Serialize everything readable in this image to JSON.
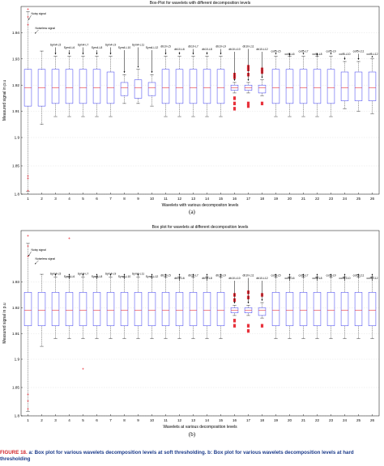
{
  "figure": {
    "subcaption_a": "(a)",
    "subcaption_b": "(b)",
    "caption_label": "FIGURE 18.",
    "caption_text": "a: Box plot for various wavelets decomposition levels at soft thresholding. b: Box plot for various wavelets decomposition levels at hard thresholding"
  },
  "colors": {
    "box": "#3a3af0",
    "median": "#e8323c",
    "outlier": "#e8323c",
    "whisker": "#000000",
    "grid": "#d9d9d9"
  },
  "chart_data": [
    {
      "type": "box",
      "title": "Box-Plot for wavelets with different decomposition levels",
      "xlabel": "Wavelets with various decompositon levels",
      "ylabel": "Measured signal in p.u",
      "ylim": [
        1.8,
        1.95
      ],
      "yticks": [
        "1.8",
        "1.85",
        "1.9",
        "1.91",
        "1.92",
        "1.93",
        "1.94"
      ],
      "xticks": [
        "1",
        "2",
        "3",
        "4",
        "5",
        "6",
        "7",
        "8",
        "9",
        "10",
        "11",
        "12",
        "13",
        "14",
        "15",
        "16",
        "17",
        "18",
        "19",
        "20",
        "21",
        "22",
        "23",
        "24",
        "25",
        "26"
      ],
      "annotations": [
        "Noisy signal",
        "Noiseless signal",
        "Sym4-L5",
        "Sym4-L6",
        "Sym4-L7",
        "Sym4-L8",
        "Sym4-L9",
        "Sym4-L10",
        "Sym4-L11",
        "Sym4-L12",
        "db10-L5",
        "db10-L6",
        "db10-L7",
        "db10-L8",
        "db10-L9",
        "db10-L10",
        "db10-L11",
        "db10-L12",
        "coif5-L5",
        "coif5-L6",
        "coif5-L7",
        "coif5-L8",
        "coif5-L9",
        "coif5-L10",
        "coif5-L11",
        "coif5-L12"
      ],
      "boxes": [
        {
          "x": 1,
          "min": 1.805,
          "q1": 1.912,
          "median": 1.919,
          "q3": 1.926,
          "max": 1.948
        },
        {
          "x": 2,
          "min": 1.905,
          "q1": 1.912,
          "median": 1.919,
          "q3": 1.926,
          "max": 1.933
        },
        {
          "x": 3,
          "min": 1.908,
          "q1": 1.913,
          "median": 1.919,
          "q3": 1.926,
          "max": 1.931
        },
        {
          "x": 4,
          "min": 1.908,
          "q1": 1.913,
          "median": 1.919,
          "q3": 1.926,
          "max": 1.931
        },
        {
          "x": 5,
          "min": 1.908,
          "q1": 1.913,
          "median": 1.919,
          "q3": 1.926,
          "max": 1.931
        },
        {
          "x": 6,
          "min": 1.908,
          "q1": 1.913,
          "median": 1.919,
          "q3": 1.926,
          "max": 1.931
        },
        {
          "x": 7,
          "min": 1.908,
          "q1": 1.913,
          "median": 1.919,
          "q3": 1.925,
          "max": 1.931
        },
        {
          "x": 8,
          "min": 1.913,
          "q1": 1.916,
          "median": 1.919,
          "q3": 1.921,
          "max": 1.924
        },
        {
          "x": 9,
          "min": 1.913,
          "q1": 1.915,
          "median": 1.919,
          "q3": 1.922,
          "max": 1.926
        },
        {
          "x": 10,
          "min": 1.912,
          "q1": 1.916,
          "median": 1.919,
          "q3": 1.921,
          "max": 1.924
        },
        {
          "x": 11,
          "min": 1.908,
          "q1": 1.913,
          "median": 1.919,
          "q3": 1.926,
          "max": 1.931
        },
        {
          "x": 12,
          "min": 1.908,
          "q1": 1.913,
          "median": 1.919,
          "q3": 1.926,
          "max": 1.931
        },
        {
          "x": 13,
          "min": 1.908,
          "q1": 1.913,
          "median": 1.919,
          "q3": 1.926,
          "max": 1.931
        },
        {
          "x": 14,
          "min": 1.908,
          "q1": 1.913,
          "median": 1.919,
          "q3": 1.926,
          "max": 1.931
        },
        {
          "x": 15,
          "min": 1.908,
          "q1": 1.913,
          "median": 1.919,
          "q3": 1.926,
          "max": 1.931
        },
        {
          "x": 16,
          "min": 1.917,
          "q1": 1.918,
          "median": 1.919,
          "q3": 1.92,
          "max": 1.921
        },
        {
          "x": 17,
          "min": 1.917,
          "q1": 1.918,
          "median": 1.919,
          "q3": 1.92,
          "max": 1.921
        },
        {
          "x": 18,
          "min": 1.916,
          "q1": 1.917,
          "median": 1.919,
          "q3": 1.92,
          "max": 1.922
        },
        {
          "x": 19,
          "min": 1.908,
          "q1": 1.913,
          "median": 1.919,
          "q3": 1.926,
          "max": 1.931
        },
        {
          "x": 20,
          "min": 1.908,
          "q1": 1.913,
          "median": 1.919,
          "q3": 1.926,
          "max": 1.931
        },
        {
          "x": 21,
          "min": 1.908,
          "q1": 1.913,
          "median": 1.919,
          "q3": 1.926,
          "max": 1.931
        },
        {
          "x": 22,
          "min": 1.908,
          "q1": 1.913,
          "median": 1.919,
          "q3": 1.926,
          "max": 1.931
        },
        {
          "x": 23,
          "min": 1.908,
          "q1": 1.913,
          "median": 1.919,
          "q3": 1.926,
          "max": 1.931
        },
        {
          "x": 24,
          "min": 1.911,
          "q1": 1.914,
          "median": 1.919,
          "q3": 1.925,
          "max": 1.929
        },
        {
          "x": 25,
          "min": 1.91,
          "q1": 1.914,
          "median": 1.919,
          "q3": 1.925,
          "max": 1.929
        },
        {
          "x": 26,
          "min": 1.909,
          "q1": 1.914,
          "median": 1.919,
          "q3": 1.925,
          "max": 1.93
        }
      ],
      "outliers": [
        {
          "x": 1,
          "y": 1.949
        },
        {
          "x": 1,
          "y": 1.946
        },
        {
          "x": 1,
          "y": 1.943
        },
        {
          "x": 1,
          "y": 1.832
        },
        {
          "x": 1,
          "y": 1.828
        },
        {
          "x": 1,
          "y": 1.806
        },
        {
          "x": 16,
          "y": 1.915
        },
        {
          "x": 16,
          "y": 1.913
        },
        {
          "x": 16,
          "y": 1.911
        },
        {
          "x": 16,
          "y": 1.923
        },
        {
          "x": 16,
          "y": 1.924
        },
        {
          "x": 17,
          "y": 1.924
        },
        {
          "x": 17,
          "y": 1.926
        },
        {
          "x": 17,
          "y": 1.927
        },
        {
          "x": 17,
          "y": 1.913
        },
        {
          "x": 17,
          "y": 1.912
        },
        {
          "x": 18,
          "y": 1.925
        },
        {
          "x": 18,
          "y": 1.926
        },
        {
          "x": 18,
          "y": 1.913
        }
      ]
    },
    {
      "type": "box",
      "title": "Box plot for wavelets at different decomposition levels",
      "xlabel": "Wavelets at various decomposition levels",
      "ylabel": "Measured signal in p.u",
      "ylim": [
        1.8,
        1.95
      ],
      "yticks": [
        "1.8",
        "1.85",
        "1.9",
        "1.91",
        "1.92",
        "1.93"
      ],
      "xticks": [
        "1",
        "2",
        "3",
        "4",
        "5",
        "6",
        "7",
        "8",
        "9",
        "10",
        "11",
        "12",
        "13",
        "14",
        "15",
        "16",
        "17",
        "18",
        "19",
        "20",
        "21",
        "22",
        "23",
        "24",
        "25",
        "26"
      ],
      "annotations": [
        "Noisy signal",
        "Noiseless signal",
        "Sym4-L5",
        "Sym4-L6",
        "Sym4-L7",
        "Sym4-L8",
        "Sym4-L9",
        "Sym4-L10",
        "Sym4-L11",
        "Sym4-L12",
        "db10-L5",
        "db10-L6",
        "db10-L7",
        "db10-L8",
        "db10-L9",
        "db10-L10",
        "db10-L11",
        "db10-L12",
        "coif5-L5",
        "coif5-L6",
        "coif5-L7",
        "coif5-L8",
        "coif5-L9",
        "coif5-L10",
        "coif5-L11",
        "coif5-L12"
      ],
      "boxes": [
        {
          "x": 1,
          "min": 1.808,
          "q1": 1.913,
          "median": 1.919,
          "q3": 1.926,
          "max": 1.945
        },
        {
          "x": 2,
          "min": 1.905,
          "q1": 1.913,
          "median": 1.919,
          "q3": 1.926,
          "max": 1.933
        },
        {
          "x": 3,
          "min": 1.908,
          "q1": 1.913,
          "median": 1.919,
          "q3": 1.926,
          "max": 1.932
        },
        {
          "x": 4,
          "min": 1.908,
          "q1": 1.913,
          "median": 1.919,
          "q3": 1.926,
          "max": 1.932
        },
        {
          "x": 5,
          "min": 1.908,
          "q1": 1.913,
          "median": 1.919,
          "q3": 1.926,
          "max": 1.932
        },
        {
          "x": 6,
          "min": 1.908,
          "q1": 1.913,
          "median": 1.919,
          "q3": 1.926,
          "max": 1.932
        },
        {
          "x": 7,
          "min": 1.908,
          "q1": 1.913,
          "median": 1.919,
          "q3": 1.926,
          "max": 1.932
        },
        {
          "x": 8,
          "min": 1.908,
          "q1": 1.913,
          "median": 1.919,
          "q3": 1.926,
          "max": 1.932
        },
        {
          "x": 9,
          "min": 1.908,
          "q1": 1.913,
          "median": 1.919,
          "q3": 1.926,
          "max": 1.932
        },
        {
          "x": 10,
          "min": 1.908,
          "q1": 1.913,
          "median": 1.919,
          "q3": 1.926,
          "max": 1.932
        },
        {
          "x": 11,
          "min": 1.908,
          "q1": 1.913,
          "median": 1.919,
          "q3": 1.926,
          "max": 1.932
        },
        {
          "x": 12,
          "min": 1.908,
          "q1": 1.913,
          "median": 1.919,
          "q3": 1.926,
          "max": 1.932
        },
        {
          "x": 13,
          "min": 1.908,
          "q1": 1.913,
          "median": 1.919,
          "q3": 1.926,
          "max": 1.932
        },
        {
          "x": 14,
          "min": 1.908,
          "q1": 1.913,
          "median": 1.919,
          "q3": 1.926,
          "max": 1.932
        },
        {
          "x": 15,
          "min": 1.908,
          "q1": 1.913,
          "median": 1.919,
          "q3": 1.926,
          "max": 1.932
        },
        {
          "x": 16,
          "min": 1.917,
          "q1": 1.918,
          "median": 1.919,
          "q3": 1.92,
          "max": 1.921
        },
        {
          "x": 17,
          "min": 1.917,
          "q1": 1.918,
          "median": 1.919,
          "q3": 1.92,
          "max": 1.921
        },
        {
          "x": 18,
          "min": 1.916,
          "q1": 1.917,
          "median": 1.919,
          "q3": 1.92,
          "max": 1.922
        },
        {
          "x": 19,
          "min": 1.908,
          "q1": 1.913,
          "median": 1.919,
          "q3": 1.926,
          "max": 1.932
        },
        {
          "x": 20,
          "min": 1.908,
          "q1": 1.913,
          "median": 1.919,
          "q3": 1.926,
          "max": 1.932
        },
        {
          "x": 21,
          "min": 1.908,
          "q1": 1.913,
          "median": 1.919,
          "q3": 1.926,
          "max": 1.932
        },
        {
          "x": 22,
          "min": 1.908,
          "q1": 1.913,
          "median": 1.919,
          "q3": 1.926,
          "max": 1.932
        },
        {
          "x": 23,
          "min": 1.908,
          "q1": 1.913,
          "median": 1.919,
          "q3": 1.926,
          "max": 1.932
        },
        {
          "x": 24,
          "min": 1.908,
          "q1": 1.913,
          "median": 1.919,
          "q3": 1.926,
          "max": 1.932
        },
        {
          "x": 25,
          "min": 1.908,
          "q1": 1.913,
          "median": 1.919,
          "q3": 1.926,
          "max": 1.932
        },
        {
          "x": 26,
          "min": 1.908,
          "q1": 1.913,
          "median": 1.919,
          "q3": 1.926,
          "max": 1.932
        }
      ],
      "outliers": [
        {
          "x": 1,
          "y": 1.948
        },
        {
          "x": 1,
          "y": 1.944
        },
        {
          "x": 1,
          "y": 1.94
        },
        {
          "x": 1,
          "y": 1.838
        },
        {
          "x": 1,
          "y": 1.826
        },
        {
          "x": 1,
          "y": 1.812
        },
        {
          "x": 4,
          "y": 1.947
        },
        {
          "x": 5,
          "y": 1.883
        },
        {
          "x": 16,
          "y": 1.915
        },
        {
          "x": 16,
          "y": 1.913
        },
        {
          "x": 16,
          "y": 1.923
        },
        {
          "x": 16,
          "y": 1.925
        },
        {
          "x": 17,
          "y": 1.924
        },
        {
          "x": 17,
          "y": 1.926
        },
        {
          "x": 17,
          "y": 1.913
        },
        {
          "x": 17,
          "y": 1.911
        },
        {
          "x": 18,
          "y": 1.925
        },
        {
          "x": 18,
          "y": 1.913
        }
      ]
    }
  ]
}
